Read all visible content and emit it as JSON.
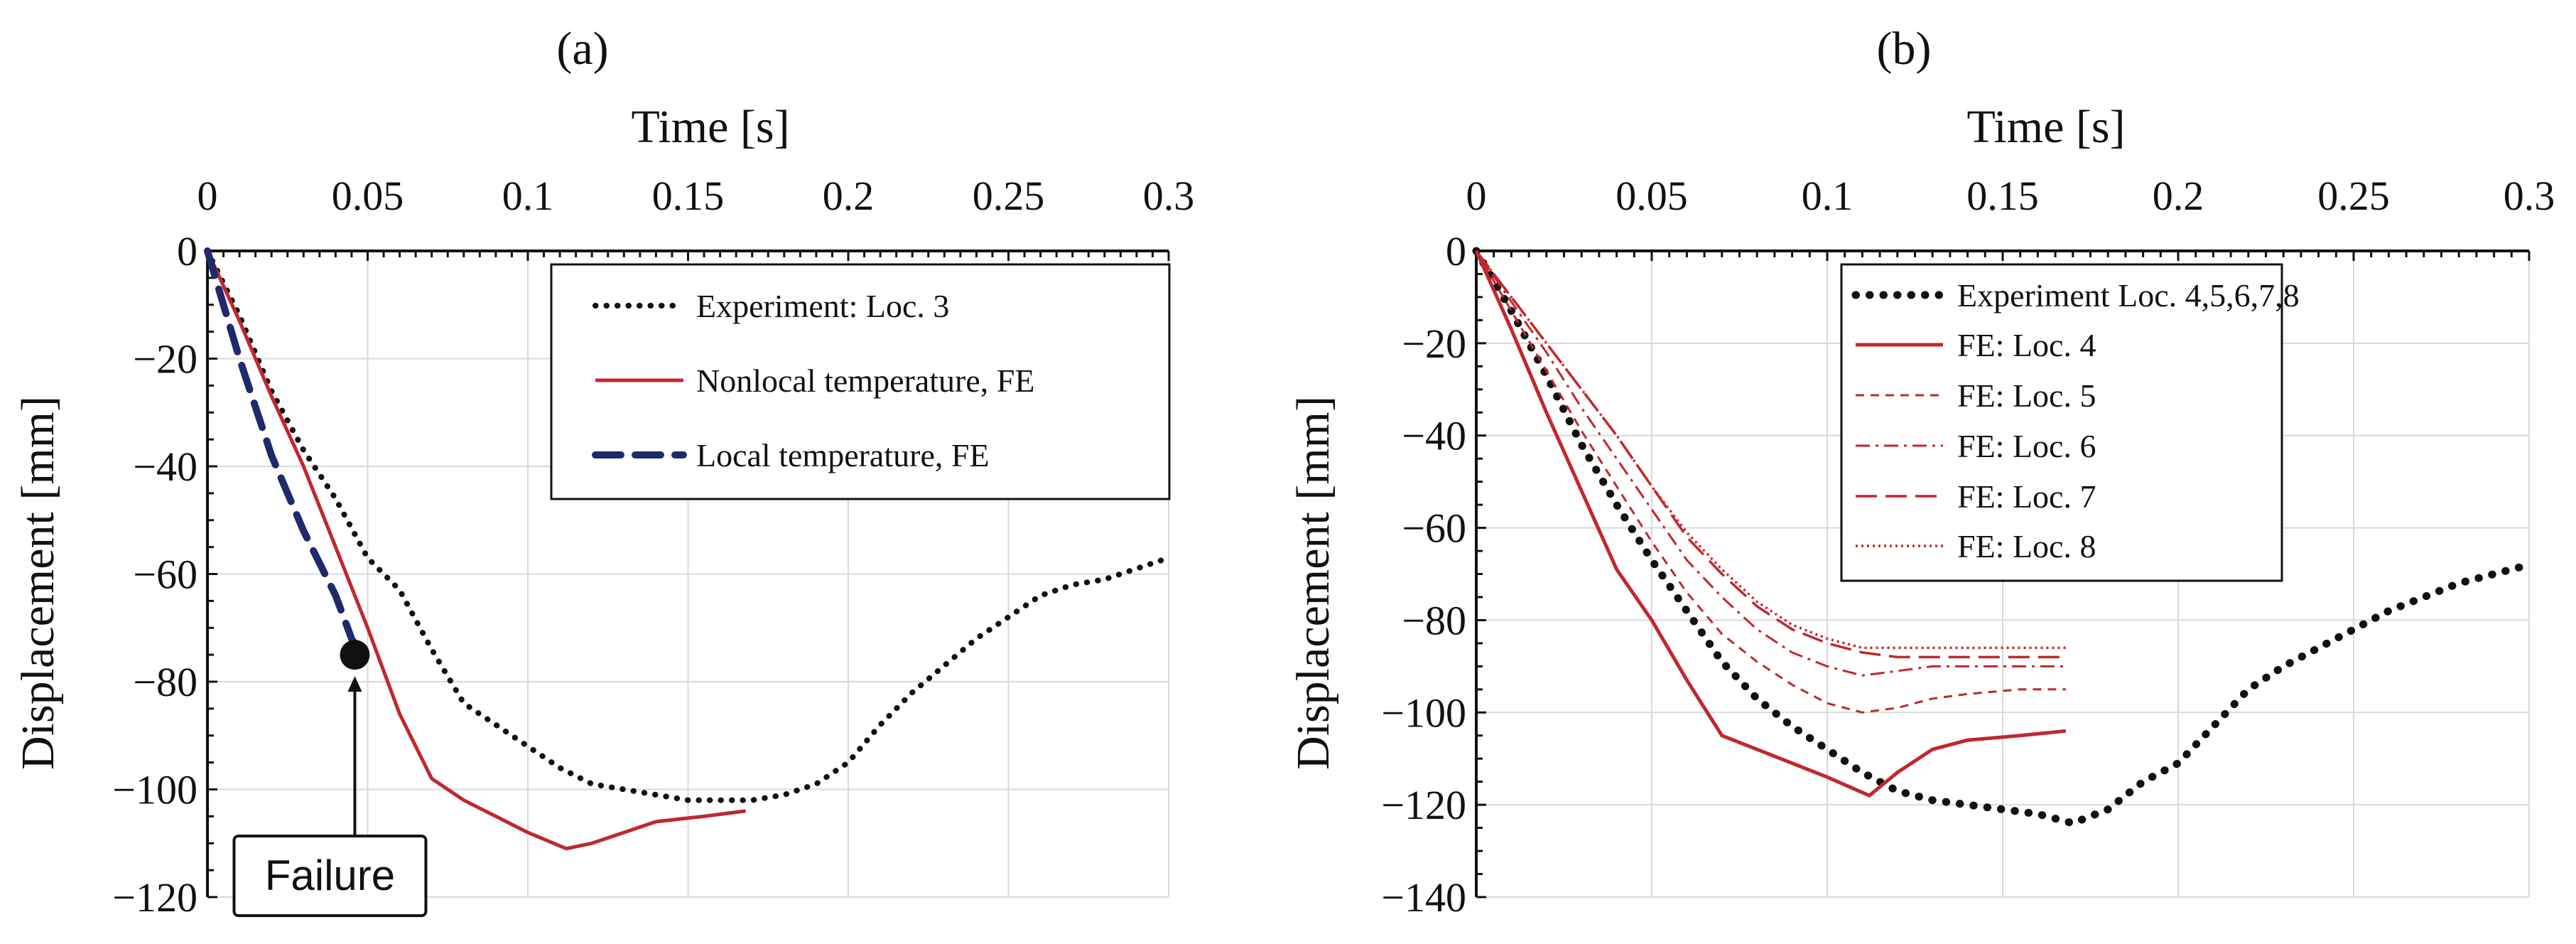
{
  "chart_data": [
    {
      "panel": "(a)",
      "type": "line",
      "xlabel": "Time [s]",
      "ylabel": "Displacement  [mm]",
      "xlim": [
        0,
        0.3
      ],
      "ylim": [
        -120,
        0
      ],
      "x_ticks": [
        0,
        0.05,
        0.1,
        0.15,
        0.2,
        0.25,
        0.3
      ],
      "x_tick_labels": [
        "0",
        "0.05",
        "0.1",
        "0.15",
        "0.2",
        "0.25",
        "0.3"
      ],
      "y_ticks": [
        0,
        -20,
        -40,
        -60,
        -80,
        -100,
        -120
      ],
      "y_tick_labels": [
        "0",
        "−20",
        "−40",
        "−60",
        "−80",
        "−100",
        "−120"
      ],
      "grid": true,
      "legend_position": "top-right",
      "series": [
        {
          "name": "Experiment: Loc. 3",
          "color": "#111111",
          "style": "dotted",
          "points": [
            [
              0,
              0
            ],
            [
              0.01,
              -12
            ],
            [
              0.02,
              -26
            ],
            [
              0.03,
              -37
            ],
            [
              0.04,
              -46
            ],
            [
              0.05,
              -57
            ],
            [
              0.06,
              -63
            ],
            [
              0.07,
              -74
            ],
            [
              0.08,
              -84
            ],
            [
              0.09,
              -88
            ],
            [
              0.1,
              -92
            ],
            [
              0.11,
              -96
            ],
            [
              0.12,
              -99
            ],
            [
              0.13,
              -100
            ],
            [
              0.14,
              -101
            ],
            [
              0.15,
              -102
            ],
            [
              0.16,
              -102
            ],
            [
              0.17,
              -102
            ],
            [
              0.18,
              -101
            ],
            [
              0.19,
              -99
            ],
            [
              0.2,
              -95
            ],
            [
              0.21,
              -88
            ],
            [
              0.22,
              -82
            ],
            [
              0.23,
              -77
            ],
            [
              0.24,
              -72
            ],
            [
              0.25,
              -68
            ],
            [
              0.26,
              -64
            ],
            [
              0.27,
              -62
            ],
            [
              0.28,
              -61
            ],
            [
              0.29,
              -59
            ],
            [
              0.3,
              -57
            ]
          ]
        },
        {
          "name": "Nonlocal temperature, FE",
          "color": "#c0282d",
          "style": "solid",
          "points": [
            [
              0,
              0
            ],
            [
              0.01,
              -13
            ],
            [
              0.02,
              -27
            ],
            [
              0.03,
              -40
            ],
            [
              0.04,
              -55
            ],
            [
              0.05,
              -70
            ],
            [
              0.06,
              -86
            ],
            [
              0.07,
              -98
            ],
            [
              0.08,
              -102
            ],
            [
              0.09,
              -105
            ],
            [
              0.1,
              -108
            ],
            [
              0.112,
              -111
            ],
            [
              0.12,
              -110
            ],
            [
              0.13,
              -108
            ],
            [
              0.14,
              -106
            ],
            [
              0.155,
              -105
            ],
            [
              0.168,
              -104
            ]
          ]
        },
        {
          "name": "Local temperature, FE",
          "color": "#1f2a6b",
          "style": "dashed",
          "points": [
            [
              0,
              0
            ],
            [
              0.01,
              -20
            ],
            [
              0.02,
              -38
            ],
            [
              0.03,
              -52
            ],
            [
              0.04,
              -64
            ],
            [
              0.045,
              -72
            ],
            [
              0.048,
              -75
            ]
          ]
        }
      ],
      "annotations": [
        {
          "text": "Failure",
          "x": 0.046,
          "y": -75
        }
      ]
    },
    {
      "panel": "(b)",
      "type": "line",
      "xlabel": "Time [s]",
      "ylabel": "Displacement  [mm]",
      "xlim": [
        0,
        0.3
      ],
      "ylim": [
        -140,
        0
      ],
      "x_ticks": [
        0,
        0.05,
        0.1,
        0.15,
        0.2,
        0.25,
        0.3
      ],
      "x_tick_labels": [
        "0",
        "0.05",
        "0.1",
        "0.15",
        "0.2",
        "0.25",
        "0.3"
      ],
      "y_ticks": [
        0,
        -20,
        -40,
        -60,
        -80,
        -100,
        -120,
        -140
      ],
      "y_tick_labels": [
        "0",
        "−20",
        "−40",
        "−60",
        "−80",
        "−100",
        "−120",
        "−140"
      ],
      "grid": true,
      "legend_position": "top-center",
      "series": [
        {
          "name": "Experiment Loc. 4,5,6,7,8",
          "color": "#111111",
          "style": "dotted-bold",
          "points": [
            [
              0,
              0
            ],
            [
              0.01,
              -13
            ],
            [
              0.02,
              -27
            ],
            [
              0.03,
              -42
            ],
            [
              0.04,
              -55
            ],
            [
              0.05,
              -67
            ],
            [
              0.06,
              -78
            ],
            [
              0.07,
              -89
            ],
            [
              0.08,
              -97
            ],
            [
              0.09,
              -103
            ],
            [
              0.1,
              -108
            ],
            [
              0.11,
              -113
            ],
            [
              0.12,
              -117
            ],
            [
              0.13,
              -119
            ],
            [
              0.14,
              -120
            ],
            [
              0.15,
              -121
            ],
            [
              0.16,
              -122
            ],
            [
              0.17,
              -124
            ],
            [
              0.18,
              -121
            ],
            [
              0.19,
              -115
            ],
            [
              0.2,
              -111
            ],
            [
              0.21,
              -103
            ],
            [
              0.22,
              -95
            ],
            [
              0.23,
              -90
            ],
            [
              0.24,
              -86
            ],
            [
              0.25,
              -82
            ],
            [
              0.26,
              -78
            ],
            [
              0.27,
              -75
            ],
            [
              0.28,
              -72
            ],
            [
              0.29,
              -70
            ],
            [
              0.3,
              -68
            ]
          ]
        },
        {
          "name": "FE: Loc. 4",
          "color": "#c0282d",
          "style": "solid",
          "points": [
            [
              0,
              0
            ],
            [
              0.01,
              -17
            ],
            [
              0.02,
              -35
            ],
            [
              0.03,
              -52
            ],
            [
              0.04,
              -69
            ],
            [
              0.05,
              -80
            ],
            [
              0.06,
              -93
            ],
            [
              0.07,
              -105
            ],
            [
              0.08,
              -108
            ],
            [
              0.09,
              -111
            ],
            [
              0.1,
              -114
            ],
            [
              0.112,
              -118
            ],
            [
              0.12,
              -113
            ],
            [
              0.13,
              -108
            ],
            [
              0.14,
              -106
            ],
            [
              0.155,
              -105
            ],
            [
              0.168,
              -104
            ]
          ]
        },
        {
          "name": "FE: Loc. 5",
          "color": "#c0282d",
          "style": "short-dash",
          "points": [
            [
              0,
              0
            ],
            [
              0.01,
              -13
            ],
            [
              0.02,
              -26
            ],
            [
              0.03,
              -39
            ],
            [
              0.04,
              -51
            ],
            [
              0.05,
              -63
            ],
            [
              0.06,
              -74
            ],
            [
              0.07,
              -83
            ],
            [
              0.08,
              -89
            ],
            [
              0.09,
              -94
            ],
            [
              0.1,
              -98
            ],
            [
              0.11,
              -100
            ],
            [
              0.12,
              -99
            ],
            [
              0.13,
              -97
            ],
            [
              0.14,
              -96
            ],
            [
              0.155,
              -95
            ],
            [
              0.168,
              -95
            ]
          ]
        },
        {
          "name": "FE: Loc. 6",
          "color": "#c0282d",
          "style": "dash-dot",
          "points": [
            [
              0,
              0
            ],
            [
              0.01,
              -11
            ],
            [
              0.02,
              -22
            ],
            [
              0.03,
              -34
            ],
            [
              0.04,
              -45
            ],
            [
              0.05,
              -56
            ],
            [
              0.06,
              -67
            ],
            [
              0.07,
              -75
            ],
            [
              0.08,
              -82
            ],
            [
              0.09,
              -87
            ],
            [
              0.1,
              -90
            ],
            [
              0.11,
              -92
            ],
            [
              0.12,
              -91
            ],
            [
              0.13,
              -90
            ],
            [
              0.14,
              -90
            ],
            [
              0.155,
              -90
            ],
            [
              0.168,
              -90
            ]
          ]
        },
        {
          "name": "FE: Loc. 7",
          "color": "#c0282d",
          "style": "long-dash",
          "points": [
            [
              0,
              0
            ],
            [
              0.01,
              -10
            ],
            [
              0.02,
              -20
            ],
            [
              0.03,
              -30
            ],
            [
              0.04,
              -40
            ],
            [
              0.05,
              -51
            ],
            [
              0.06,
              -62
            ],
            [
              0.07,
              -70
            ],
            [
              0.08,
              -77
            ],
            [
              0.09,
              -82
            ],
            [
              0.1,
              -85
            ],
            [
              0.11,
              -87
            ],
            [
              0.12,
              -88
            ],
            [
              0.13,
              -88
            ],
            [
              0.14,
              -88
            ],
            [
              0.155,
              -88
            ],
            [
              0.168,
              -88
            ]
          ]
        },
        {
          "name": "FE: Loc. 8",
          "color": "#c0282d",
          "style": "fine-dot",
          "points": [
            [
              0,
              0
            ],
            [
              0.01,
              -10
            ],
            [
              0.02,
              -20
            ],
            [
              0.03,
              -30
            ],
            [
              0.04,
              -40
            ],
            [
              0.05,
              -51
            ],
            [
              0.06,
              -61
            ],
            [
              0.07,
              -69
            ],
            [
              0.08,
              -76
            ],
            [
              0.09,
              -81
            ],
            [
              0.1,
              -84
            ],
            [
              0.11,
              -86
            ],
            [
              0.12,
              -86
            ],
            [
              0.13,
              -86
            ],
            [
              0.14,
              -86
            ],
            [
              0.155,
              -86
            ],
            [
              0.168,
              -86
            ]
          ]
        }
      ]
    }
  ]
}
